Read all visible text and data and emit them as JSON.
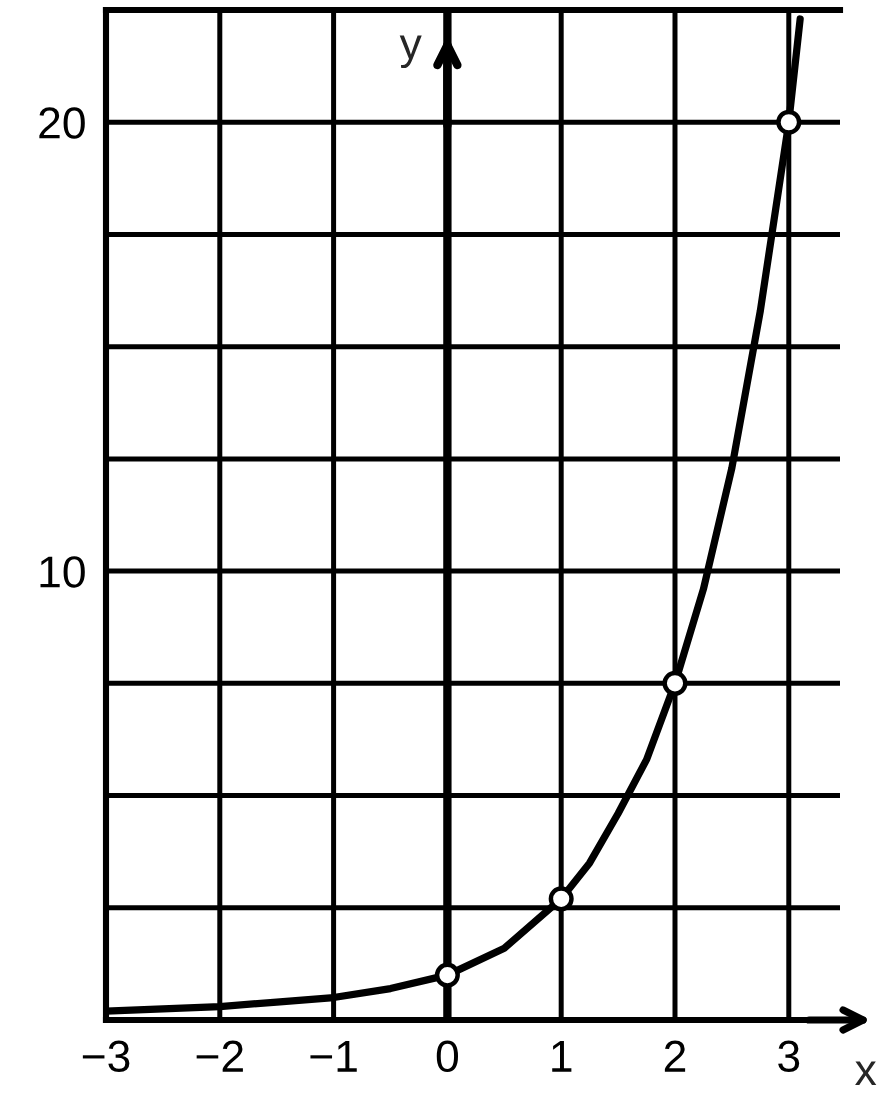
{
  "chart_data": {
    "type": "line",
    "xlabel": "x",
    "ylabel": "y",
    "series": [
      {
        "color": "#000000",
        "marker": "none",
        "line_style": "solid",
        "x": [
          -3,
          -2.5,
          -2,
          -1.5,
          -1,
          -0.5,
          0,
          0.5,
          1,
          1.25,
          1.5,
          1.75,
          2,
          2.25,
          2.5,
          2.75,
          3,
          3.1
        ],
        "values": [
          0.2,
          0.25,
          0.3,
          0.4,
          0.5,
          0.7,
          1,
          1.6,
          2.7,
          3.5,
          4.6,
          5.8,
          7.5,
          9.6,
          12.3,
          15.8,
          20,
          22.3
        ]
      },
      {
        "type": "scatter",
        "color": "#ffffff",
        "marker": "circle",
        "x": [
          0,
          1,
          2,
          3
        ],
        "values": [
          1,
          2.7,
          7.5,
          20
        ]
      }
    ],
    "xlim": [
      -3,
      3.45
    ],
    "xticks": [
      {
        "value": -3,
        "label": "−3"
      },
      {
        "value": -2,
        "label": "−2"
      },
      {
        "value": -1,
        "label": "−1"
      },
      0,
      1,
      2,
      3
    ],
    "ylim": [
      0,
      22.5
    ],
    "yticks": [
      {
        "value": 2.5,
        "label": null
      },
      {
        "value": 5,
        "label": null
      },
      {
        "value": 7.5,
        "label": null
      },
      10,
      {
        "value": 12.5,
        "label": null
      },
      {
        "value": 15,
        "label": null
      },
      {
        "value": 17.5,
        "label": null
      },
      20,
      {
        "value": 22.5,
        "label": null
      }
    ],
    "grid": true,
    "ref_lines": [
      {
        "axis": "x",
        "value": 0,
        "color": "#000000"
      }
    ]
  }
}
